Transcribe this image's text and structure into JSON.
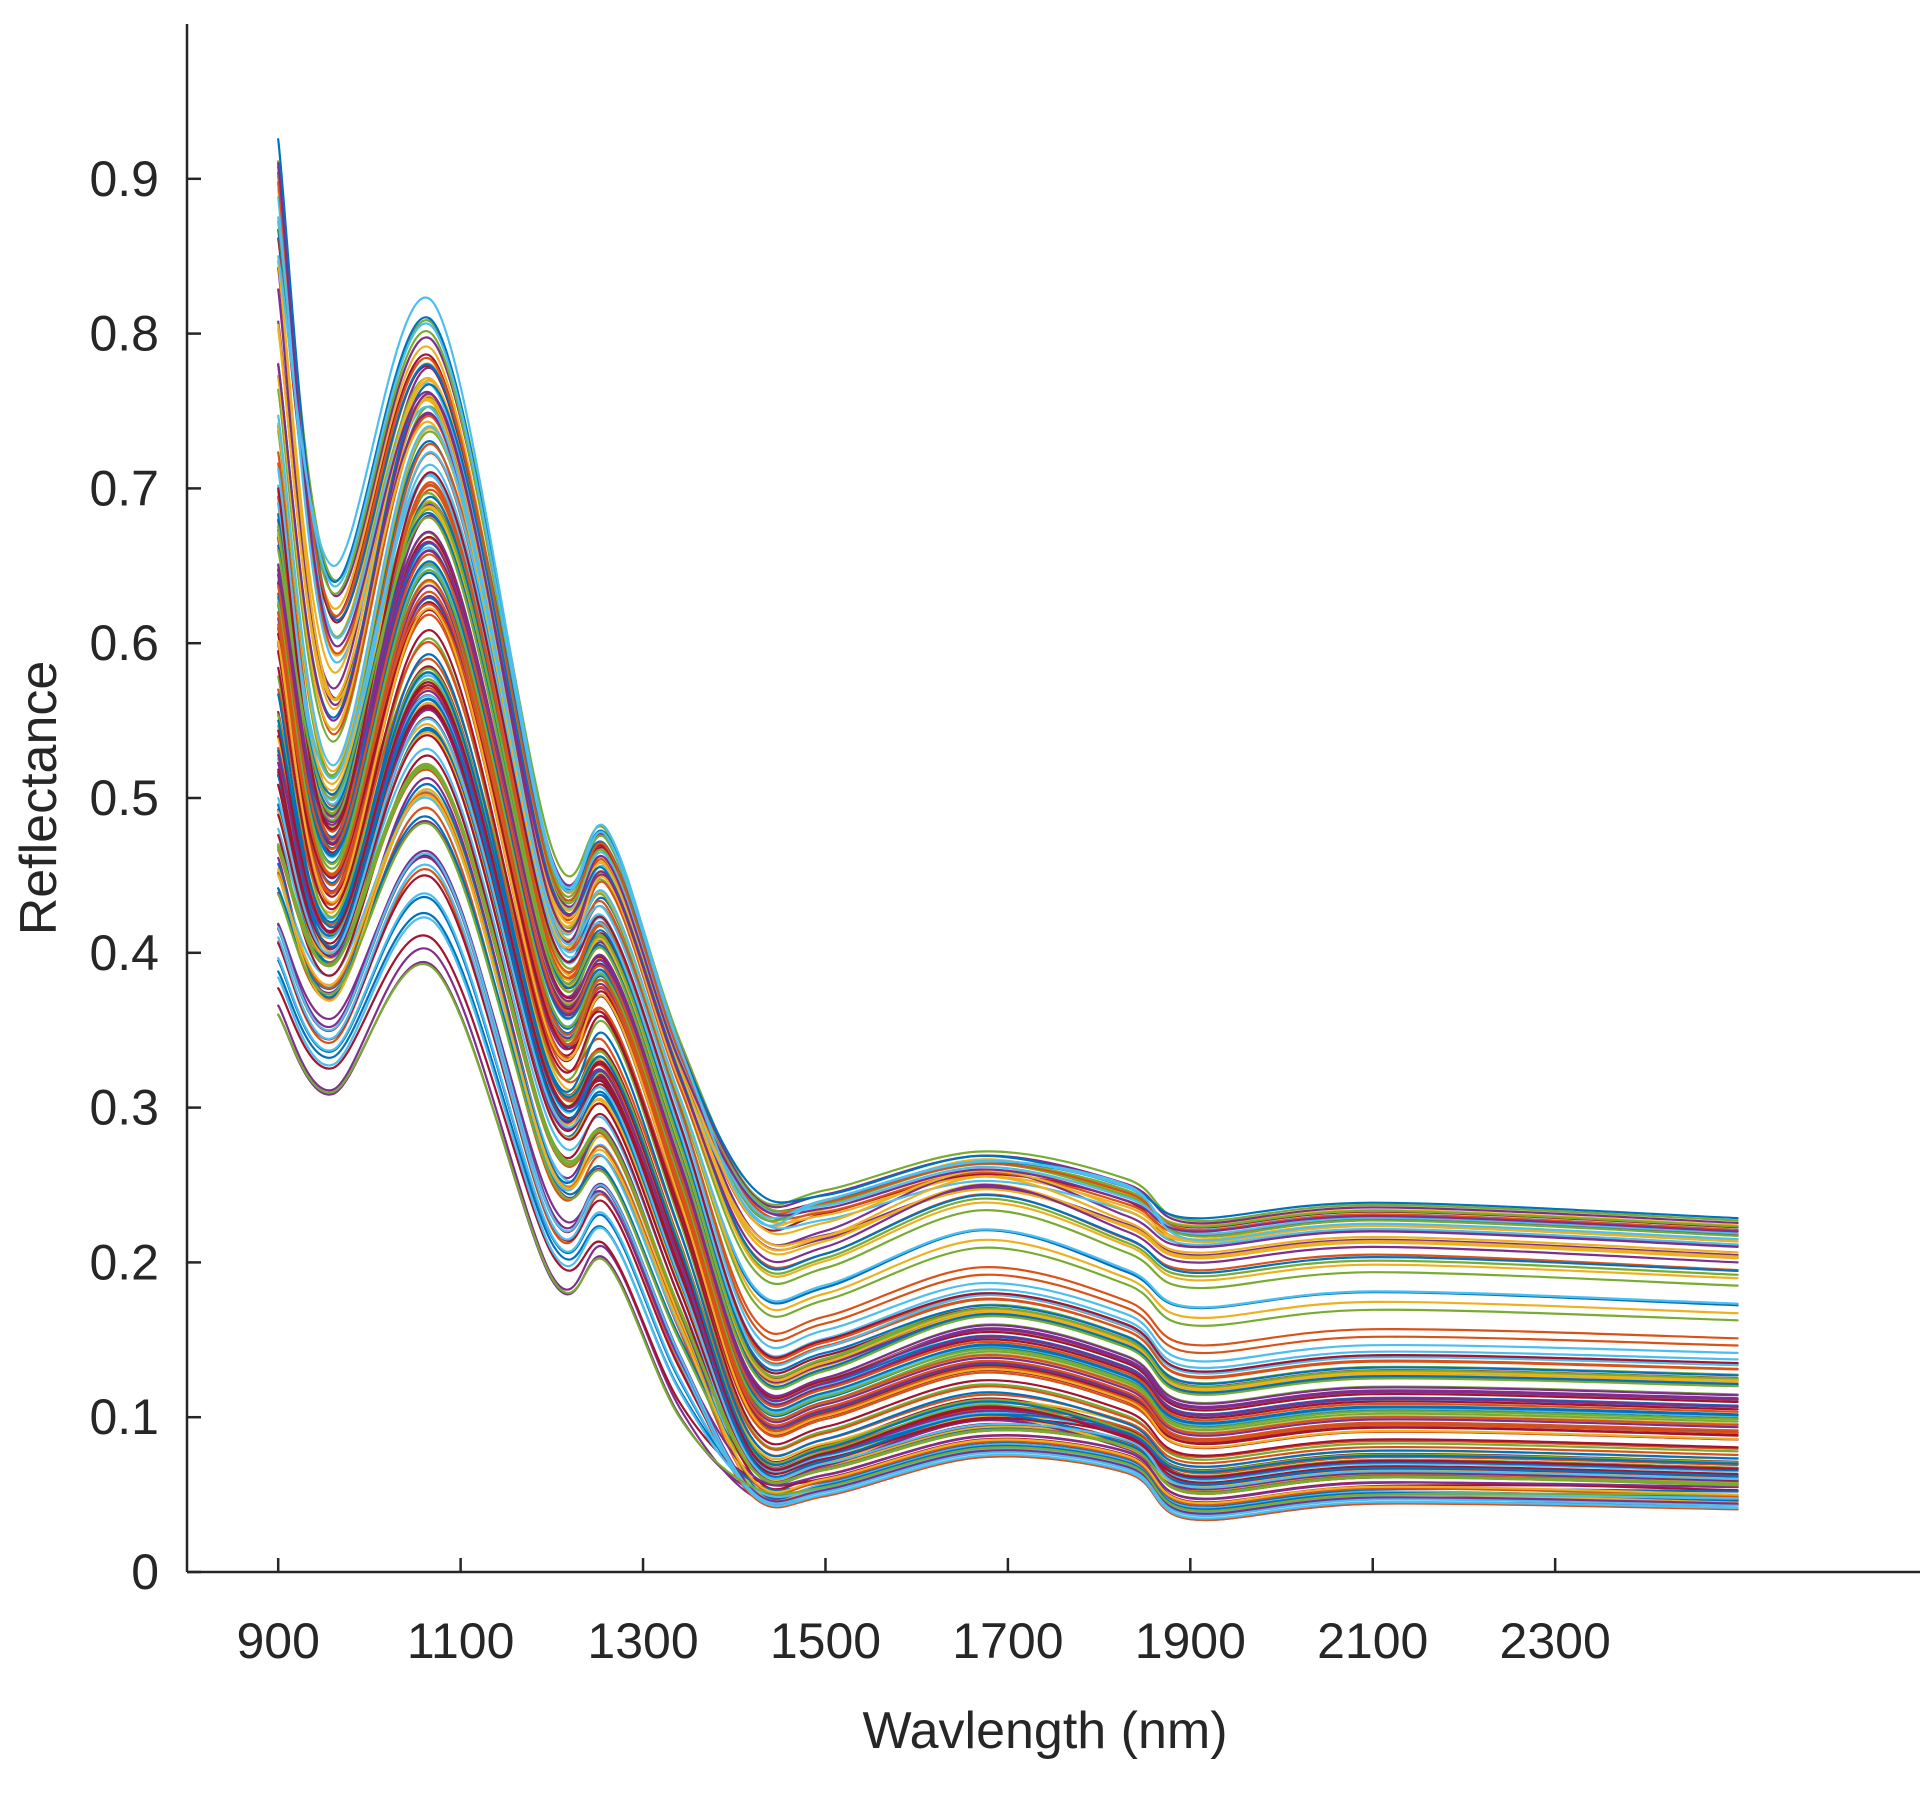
{
  "chart_data": {
    "type": "line",
    "title": "",
    "xlabel": "Wavlength (nm)",
    "ylabel": "Reflectance",
    "xlim": [
      800,
      2700
    ],
    "ylim": [
      0,
      1.0
    ],
    "x_ticks": [
      900,
      1100,
      1300,
      1500,
      1700,
      1900,
      2100,
      2300
    ],
    "x_tick_labels": [
      "900",
      "1100",
      "1300",
      "1500",
      "1700",
      "1900",
      "2100",
      "2300"
    ],
    "y_ticks": [
      0,
      0.1,
      0.2,
      0.3,
      0.4,
      0.5,
      0.6,
      0.7,
      0.8,
      0.9
    ],
    "y_tick_labels": [
      "0",
      "0.1",
      "0.2",
      "0.3",
      "0.4",
      "0.5",
      "0.6",
      "0.7",
      "0.8",
      "0.9"
    ],
    "grid": false,
    "legend": "none",
    "box": "left-bottom axes only",
    "x": [
      900,
      960,
      1070,
      1200,
      1260,
      1340,
      1420,
      1500,
      1670,
      1830,
      1900,
      2100,
      2500
    ],
    "profile_description": "~150 reflectance spectra; each row gives reflectance at the shared x wavelengths",
    "series": [
      {
        "values": [
          0.91,
          0.6,
          0.76,
          0.44,
          0.46,
          0.33,
          0.24,
          0.235,
          0.26,
          0.24,
          0.22,
          0.23,
          0.22
        ]
      },
      {
        "values": [
          0.36,
          0.31,
          0.39,
          0.19,
          0.2,
          0.1,
          0.055,
          0.055,
          0.08,
          0.07,
          0.04,
          0.05,
          0.05
        ]
      },
      {
        "values": [
          0.85,
          0.65,
          0.82,
          0.46,
          0.48,
          0.34,
          0.23,
          0.24,
          0.265,
          0.25,
          0.215,
          0.225,
          0.215
        ]
      },
      {
        "values": [
          0.7,
          0.48,
          0.71,
          0.41,
          0.42,
          0.29,
          0.15,
          0.15,
          0.18,
          0.16,
          0.13,
          0.14,
          0.135
        ]
      },
      {
        "values": [
          0.55,
          0.42,
          0.58,
          0.32,
          0.33,
          0.21,
          0.08,
          0.08,
          0.11,
          0.09,
          0.065,
          0.075,
          0.07
        ]
      },
      {
        "values": [
          0.62,
          0.45,
          0.64,
          0.36,
          0.38,
          0.25,
          0.11,
          0.11,
          0.14,
          0.12,
          0.09,
          0.1,
          0.095
        ]
      },
      {
        "values": [
          0.45,
          0.38,
          0.5,
          0.26,
          0.27,
          0.16,
          0.06,
          0.06,
          0.085,
          0.075,
          0.045,
          0.055,
          0.05
        ]
      },
      {
        "values": [
          0.78,
          0.55,
          0.76,
          0.43,
          0.45,
          0.32,
          0.21,
          0.21,
          0.25,
          0.22,
          0.2,
          0.21,
          0.2
        ]
      },
      {
        "values": [
          0.66,
          0.5,
          0.68,
          0.39,
          0.4,
          0.27,
          0.13,
          0.13,
          0.165,
          0.145,
          0.115,
          0.125,
          0.12
        ]
      },
      {
        "values": [
          0.5,
          0.4,
          0.55,
          0.3,
          0.31,
          0.19,
          0.07,
          0.07,
          0.095,
          0.085,
          0.055,
          0.065,
          0.06
        ]
      }
    ]
  },
  "colors": [
    "#0072bd",
    "#d95319",
    "#edb120",
    "#7e2f8e",
    "#77ac30",
    "#4dbeee",
    "#a2142f"
  ]
}
